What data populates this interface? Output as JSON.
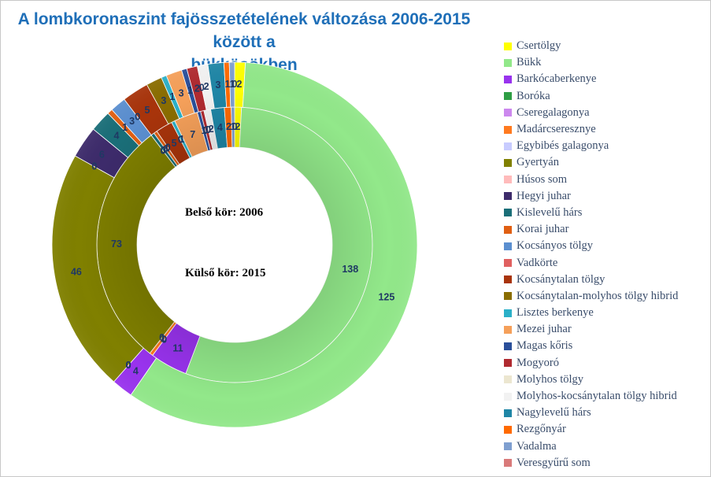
{
  "chart_data": {
    "type": "pie",
    "subtype": "doughnut",
    "title": "A lombkoronaszint fajösszetételének változása 2006-2015 között a bükkösökben",
    "annotations": [
      "Belső kör: 2006",
      "Külső kör: 2015"
    ],
    "legend_position": "right",
    "categories": [
      "Csertölgy",
      "Bükk",
      "Barkócaberkenye",
      "Boróka",
      "Cseregalagonya",
      "Madárcseresznye",
      "Egybibés galagonya",
      "Gyertyán",
      "Húsos som",
      "Hegyi juhar",
      "Kislevelű hárs",
      "Korai juhar",
      "Kocsányos tölgy",
      "Vadkörte",
      "Kocsánytalan tölgy",
      "Kocsánytalan-molyhos tölgy hibrid",
      "Lisztes berkenye",
      "Mezei juhar",
      "Magas kőris",
      "Mogyoró",
      "Molyhos tölgy",
      "Molyhos-kocsánytalan tölgy hibrid",
      "Nagylevelű hárs",
      "Rezgőnyár",
      "Vadalma",
      "Veresgyűrű som"
    ],
    "colors": [
      "#ffff00",
      "#92e88a",
      "#9933ee",
      "#2e9e44",
      "#cc88ee",
      "#ff7a1f",
      "#c8ccff",
      "#808000",
      "#ffbbbb",
      "#3d2b6b",
      "#1a6e78",
      "#e05f12",
      "#5b8fd0",
      "#e06060",
      "#a8340b",
      "#8a6d00",
      "#2bb0c8",
      "#f5a05a",
      "#2a4f9a",
      "#b02a30",
      "#ece6d0",
      "#f2f2f2",
      "#1f86a6",
      "#ff6a00",
      "#7f9fd0",
      "#d97a7a"
    ],
    "series": [
      {
        "name": "2006",
        "values": [
          2,
          138,
          11,
          0,
          0,
          1,
          0,
          73,
          0,
          0,
          1,
          1,
          0,
          0,
          5,
          0,
          1,
          7,
          1,
          1,
          0,
          2,
          4,
          2,
          1,
          0
        ]
      },
      {
        "name": "2015",
        "values": [
          2,
          125,
          4,
          0,
          0,
          0,
          0,
          46,
          0,
          6,
          4,
          1,
          3,
          0,
          5,
          3,
          1,
          3,
          1,
          2,
          0,
          2,
          3,
          1,
          1,
          0
        ]
      }
    ]
  }
}
